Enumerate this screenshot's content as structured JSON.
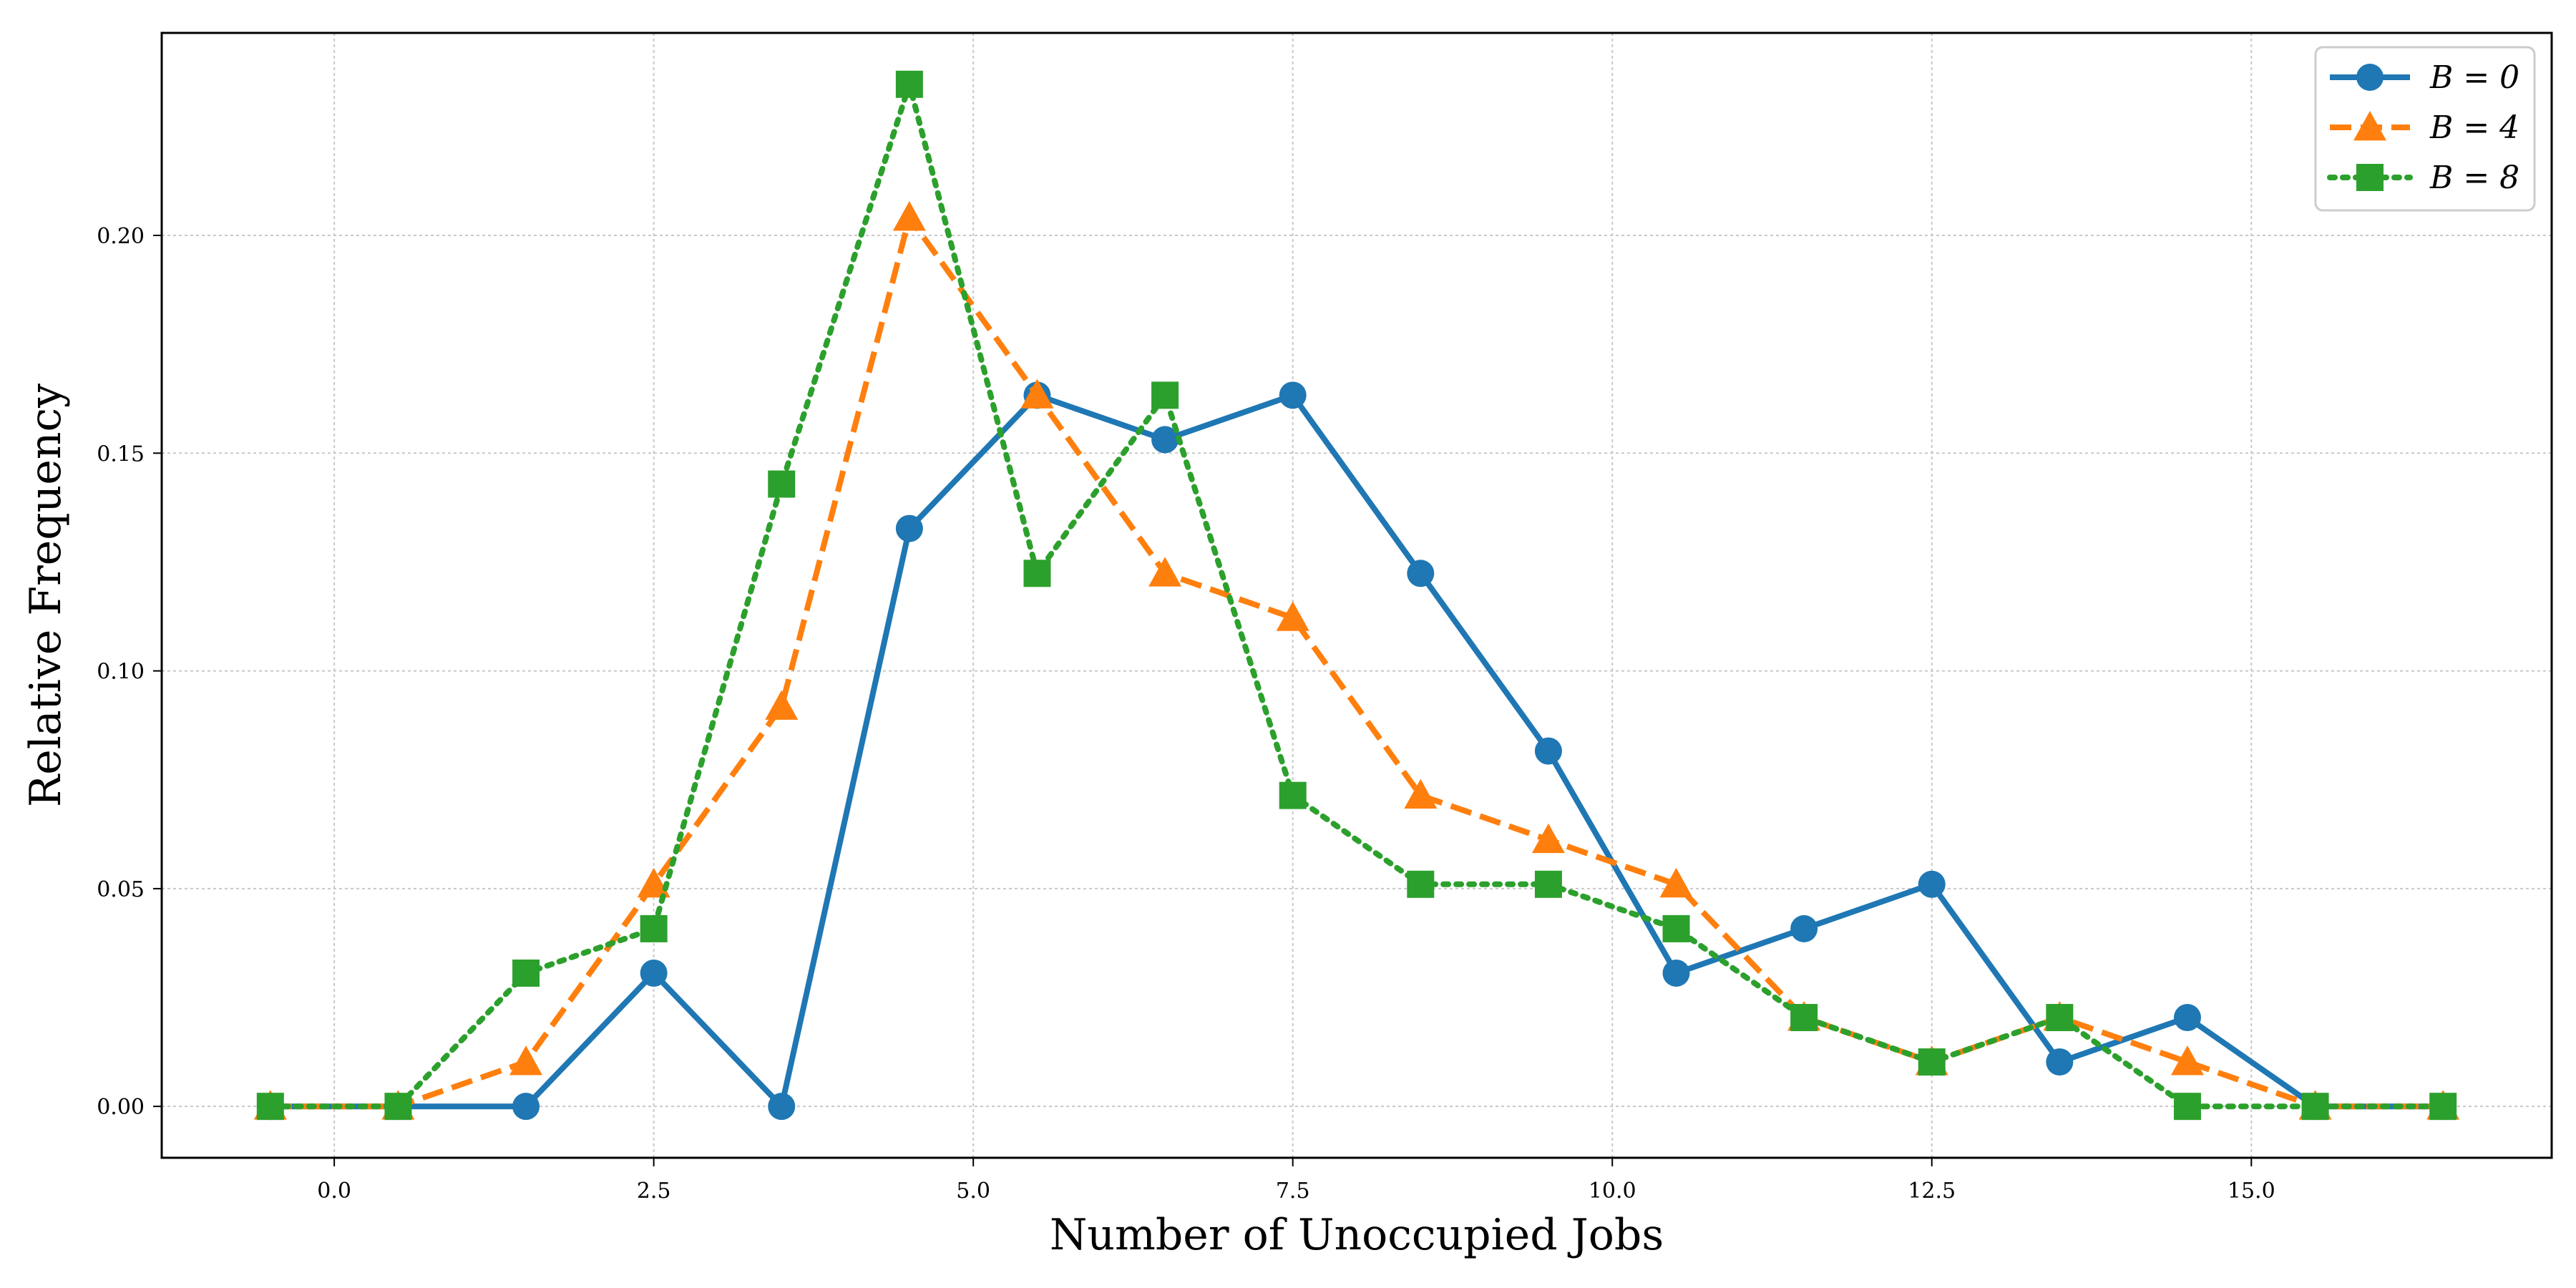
{
  "chart_data": {
    "type": "line",
    "title": "",
    "xlabel": "Number of Unoccupied Jobs",
    "ylabel": "Relative Frequency",
    "xlim": [
      -1.35,
      17.35
    ],
    "ylim": [
      -0.0118,
      0.2465
    ],
    "x_ticks": [
      "0.0",
      "2.5",
      "5.0",
      "7.5",
      "10.0",
      "12.5",
      "15.0"
    ],
    "x_tick_values": [
      0,
      2.5,
      5,
      7.5,
      10,
      12.5,
      15
    ],
    "y_ticks": [
      "0.00",
      "0.05",
      "0.10",
      "0.15",
      "0.20"
    ],
    "y_tick_values": [
      0,
      0.05,
      0.1,
      0.15,
      0.2
    ],
    "grid": true,
    "legend_position": "top-right",
    "x": [
      -0.5,
      0.5,
      1.5,
      2.5,
      3.5,
      4.5,
      5.5,
      6.5,
      7.5,
      8.5,
      9.5,
      10.5,
      11.5,
      12.5,
      13.5,
      14.5,
      15.5,
      16.5
    ],
    "series": [
      {
        "name": "B = 0",
        "color": "#1f77b4",
        "line_style": "solid",
        "marker": "circle",
        "values": [
          0,
          0,
          0,
          0.0306,
          0,
          0.1327,
          0.1633,
          0.1531,
          0.1633,
          0.1224,
          0.0816,
          0.0306,
          0.0408,
          0.051,
          0.0102,
          0.0204,
          0,
          0
        ]
      },
      {
        "name": "B = 4",
        "color": "#ff7f0e",
        "line_style": "dashed",
        "marker": "triangle",
        "values": [
          0,
          0,
          0.0102,
          0.051,
          0.0918,
          0.2041,
          0.1633,
          0.1224,
          0.1122,
          0.0714,
          0.0612,
          0.051,
          0.0204,
          0.0102,
          0.0204,
          0.0102,
          0,
          0
        ]
      },
      {
        "name": "B = 8",
        "color": "#2ca02c",
        "line_style": "dotted",
        "marker": "square",
        "values": [
          0,
          0,
          0.0306,
          0.0408,
          0.1429,
          0.2347,
          0.1224,
          0.1633,
          0.0714,
          0.051,
          0.051,
          0.0408,
          0.0204,
          0.0102,
          0.0204,
          0,
          0,
          0
        ]
      }
    ]
  }
}
